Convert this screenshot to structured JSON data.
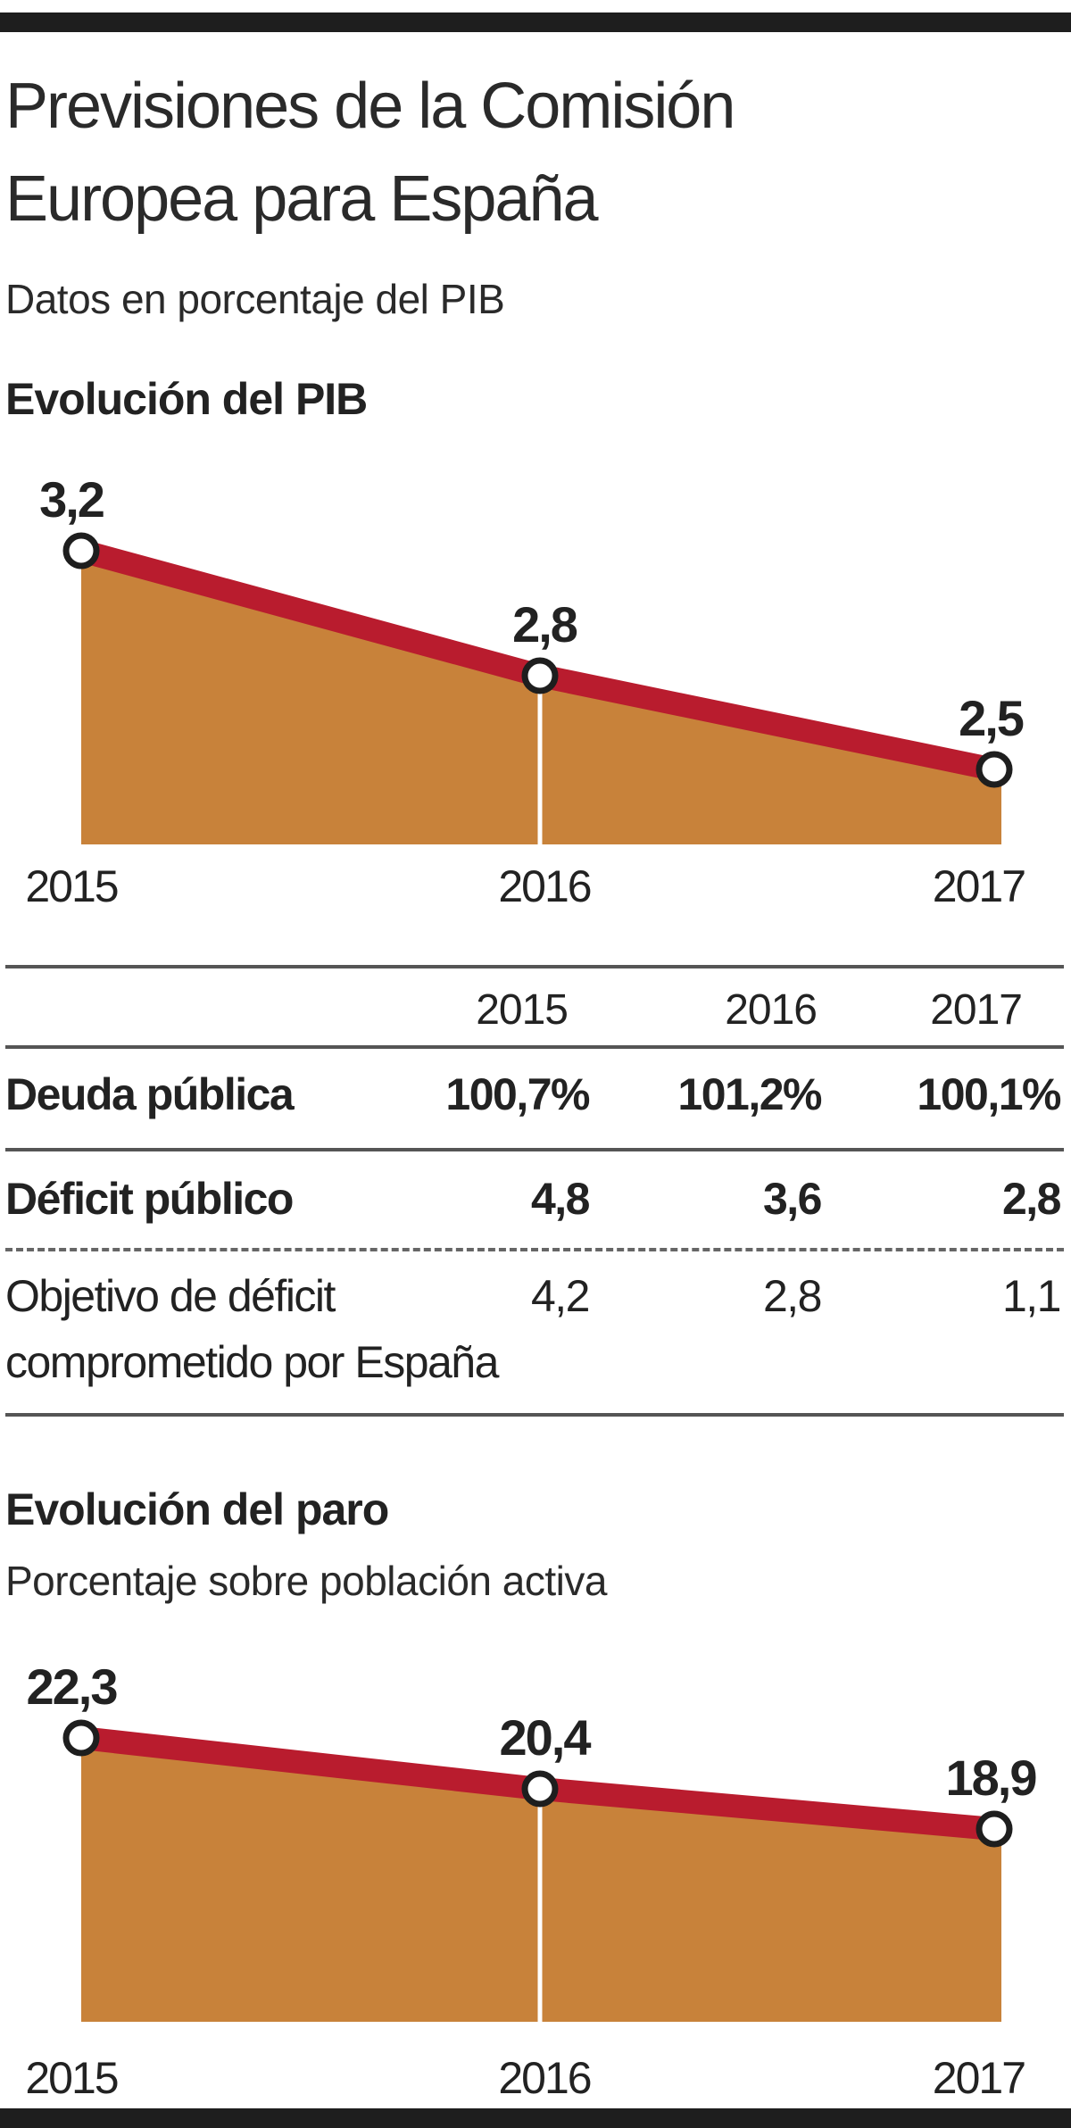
{
  "header": {
    "title_line1": "Previsiones de la Comisión",
    "title_line2": "Europea para España",
    "subtitle": "Datos en porcentaje del PIB"
  },
  "colors": {
    "accent": "#b5172b",
    "line": "#b91c2e",
    "fill": "#c8823a",
    "text": "#222222"
  },
  "pib": {
    "heading": "Evolución del PIB"
  },
  "table": {
    "years": [
      "2015",
      "2016",
      "2017"
    ],
    "rows": [
      {
        "label": "Deuda pública",
        "values": [
          "100,7%",
          "101,2%",
          "100,1%"
        ]
      },
      {
        "label": "Déficit público",
        "values": [
          "4,8",
          "3,6",
          "2,8"
        ]
      },
      {
        "label_line1": "Objetivo de déficit",
        "label_line2": "comprometido por España",
        "values": [
          "4,2",
          "2,8",
          "1,1"
        ]
      }
    ]
  },
  "paro": {
    "heading": "Evolución del paro",
    "subtitle": "Porcentaje sobre población activa"
  },
  "chart_data": [
    {
      "type": "area",
      "title": "Evolución del PIB",
      "categories": [
        "2015",
        "2016",
        "2017"
      ],
      "values": [
        3.2,
        2.8,
        2.5
      ],
      "labels": [
        "3,2",
        "2,8",
        "2,5"
      ],
      "grid": false
    },
    {
      "type": "area",
      "title": "Evolución del paro",
      "categories": [
        "2015",
        "2016",
        "2017"
      ],
      "values": [
        22.3,
        20.4,
        18.9
      ],
      "labels": [
        "22,3",
        "20,4",
        "18,9"
      ],
      "grid": false
    }
  ]
}
